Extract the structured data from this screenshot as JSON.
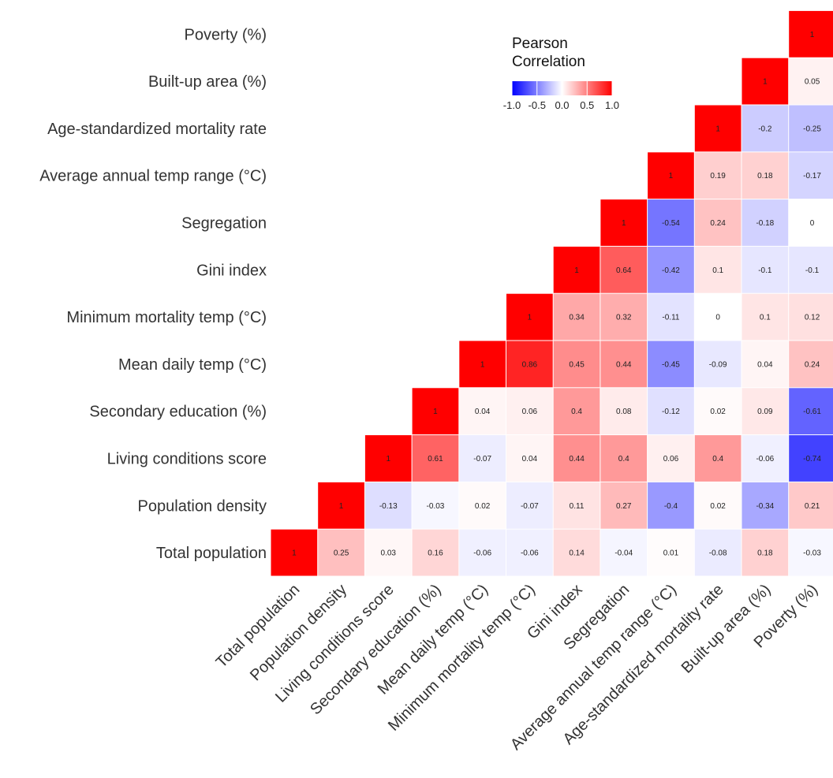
{
  "chart_data": {
    "type": "heatmap",
    "variables": [
      "Total population",
      "Population density",
      "Living conditions score",
      "Secondary education (%)",
      "Mean daily temp (°C)",
      "Minimum mortality temp (°C)",
      "Gini index",
      "Segregation",
      "Average annual temp range (°C)",
      "Age-standardized mortality rate",
      "Built-up area (%)",
      "Poverty (%)"
    ],
    "cells": [
      {
        "row": 0,
        "col": 0,
        "value": 1
      },
      {
        "row": 0,
        "col": 1,
        "value": 0.25
      },
      {
        "row": 0,
        "col": 2,
        "value": 0.03
      },
      {
        "row": 0,
        "col": 3,
        "value": 0.16
      },
      {
        "row": 0,
        "col": 4,
        "value": -0.06
      },
      {
        "row": 0,
        "col": 5,
        "value": -0.06
      },
      {
        "row": 0,
        "col": 6,
        "value": 0.14
      },
      {
        "row": 0,
        "col": 7,
        "value": -0.04
      },
      {
        "row": 0,
        "col": 8,
        "value": 0.01
      },
      {
        "row": 0,
        "col": 9,
        "value": -0.08
      },
      {
        "row": 0,
        "col": 10,
        "value": 0.18
      },
      {
        "row": 0,
        "col": 11,
        "value": -0.03
      },
      {
        "row": 1,
        "col": 1,
        "value": 1
      },
      {
        "row": 1,
        "col": 2,
        "value": -0.13
      },
      {
        "row": 1,
        "col": 3,
        "value": -0.03
      },
      {
        "row": 1,
        "col": 4,
        "value": 0.02
      },
      {
        "row": 1,
        "col": 5,
        "value": -0.07
      },
      {
        "row": 1,
        "col": 6,
        "value": 0.11
      },
      {
        "row": 1,
        "col": 7,
        "value": 0.27
      },
      {
        "row": 1,
        "col": 8,
        "value": -0.4
      },
      {
        "row": 1,
        "col": 9,
        "value": 0.02
      },
      {
        "row": 1,
        "col": 10,
        "value": -0.34
      },
      {
        "row": 1,
        "col": 11,
        "value": 0.21
      },
      {
        "row": 2,
        "col": 2,
        "value": 1
      },
      {
        "row": 2,
        "col": 3,
        "value": 0.61
      },
      {
        "row": 2,
        "col": 4,
        "value": -0.07
      },
      {
        "row": 2,
        "col": 5,
        "value": 0.04
      },
      {
        "row": 2,
        "col": 6,
        "value": 0.44
      },
      {
        "row": 2,
        "col": 7,
        "value": 0.4
      },
      {
        "row": 2,
        "col": 8,
        "value": 0.06
      },
      {
        "row": 2,
        "col": 9,
        "value": 0.4
      },
      {
        "row": 2,
        "col": 10,
        "value": -0.06
      },
      {
        "row": 2,
        "col": 11,
        "value": -0.74
      },
      {
        "row": 3,
        "col": 3,
        "value": 1
      },
      {
        "row": 3,
        "col": 4,
        "value": 0.04
      },
      {
        "row": 3,
        "col": 5,
        "value": 0.06
      },
      {
        "row": 3,
        "col": 6,
        "value": 0.4
      },
      {
        "row": 3,
        "col": 7,
        "value": 0.08
      },
      {
        "row": 3,
        "col": 8,
        "value": -0.12
      },
      {
        "row": 3,
        "col": 9,
        "value": 0.02
      },
      {
        "row": 3,
        "col": 10,
        "value": 0.09
      },
      {
        "row": 3,
        "col": 11,
        "value": -0.61
      },
      {
        "row": 4,
        "col": 4,
        "value": 1
      },
      {
        "row": 4,
        "col": 5,
        "value": 0.86
      },
      {
        "row": 4,
        "col": 6,
        "value": 0.45
      },
      {
        "row": 4,
        "col": 7,
        "value": 0.44
      },
      {
        "row": 4,
        "col": 8,
        "value": -0.45
      },
      {
        "row": 4,
        "col": 9,
        "value": -0.09
      },
      {
        "row": 4,
        "col": 10,
        "value": 0.04
      },
      {
        "row": 4,
        "col": 11,
        "value": 0.24
      },
      {
        "row": 5,
        "col": 5,
        "value": 1
      },
      {
        "row": 5,
        "col": 6,
        "value": 0.34
      },
      {
        "row": 5,
        "col": 7,
        "value": 0.32
      },
      {
        "row": 5,
        "col": 8,
        "value": -0.11
      },
      {
        "row": 5,
        "col": 9,
        "value": 0
      },
      {
        "row": 5,
        "col": 10,
        "value": 0.1
      },
      {
        "row": 5,
        "col": 11,
        "value": 0.12
      },
      {
        "row": 6,
        "col": 6,
        "value": 1
      },
      {
        "row": 6,
        "col": 7,
        "value": 0.64
      },
      {
        "row": 6,
        "col": 8,
        "value": -0.42
      },
      {
        "row": 6,
        "col": 9,
        "value": 0.1
      },
      {
        "row": 6,
        "col": 10,
        "value": -0.1
      },
      {
        "row": 6,
        "col": 11,
        "value": -0.1
      },
      {
        "row": 7,
        "col": 7,
        "value": 1
      },
      {
        "row": 7,
        "col": 8,
        "value": -0.54
      },
      {
        "row": 7,
        "col": 9,
        "value": 0.24
      },
      {
        "row": 7,
        "col": 10,
        "value": -0.18
      },
      {
        "row": 7,
        "col": 11,
        "value": 0
      },
      {
        "row": 8,
        "col": 8,
        "value": 1
      },
      {
        "row": 8,
        "col": 9,
        "value": 0.19
      },
      {
        "row": 8,
        "col": 10,
        "value": 0.18
      },
      {
        "row": 8,
        "col": 11,
        "value": -0.17
      },
      {
        "row": 9,
        "col": 9,
        "value": 1
      },
      {
        "row": 9,
        "col": 10,
        "value": -0.2
      },
      {
        "row": 9,
        "col": 11,
        "value": -0.25
      },
      {
        "row": 10,
        "col": 10,
        "value": 1
      },
      {
        "row": 10,
        "col": 11,
        "value": 0.05
      },
      {
        "row": 11,
        "col": 11,
        "value": 1
      }
    ],
    "color_scale": {
      "min": -1.0,
      "max": 1.0,
      "low_color": "#0000ff",
      "mid_color": "#ffffff",
      "high_color": "#ff0000"
    },
    "legend": {
      "title_lines": [
        "Pearson",
        "Correlation"
      ],
      "tick_labels": [
        "-1.0",
        "-0.5",
        "0.0",
        "0.5",
        "1.0"
      ],
      "tick_values": [
        -1.0,
        -0.5,
        0.0,
        0.5,
        1.0
      ],
      "placement": "top-right"
    }
  }
}
